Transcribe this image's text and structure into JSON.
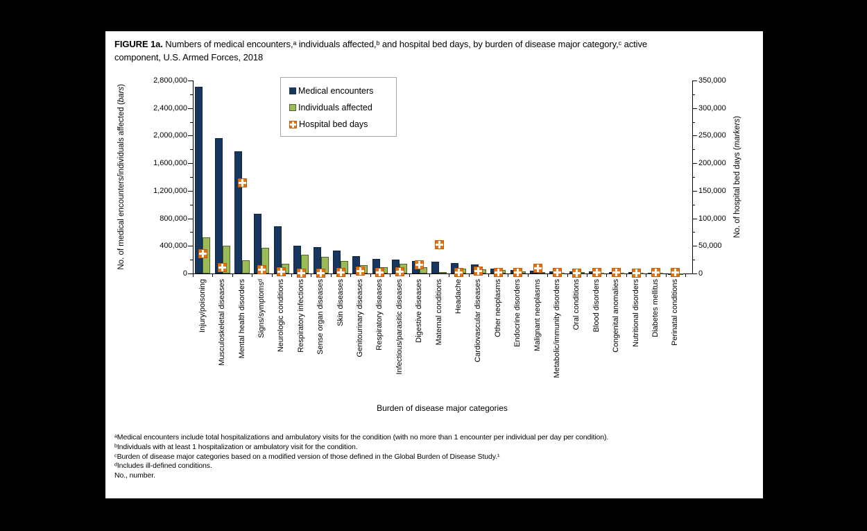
{
  "figure": {
    "title_bold": "FIGURE 1a.",
    "title_line1": " Numbers of medical encounters,ᵃ individuals affected,ᵇ and hospital bed days, by burden of disease major category,ᶜ active",
    "title_line2": "component, U.S. Armed Forces, 2018"
  },
  "chart_data": {
    "type": "bar",
    "title": "FIGURE 1a. Numbers of medical encounters, individuals affected, and hospital bed days, by burden of disease major category, active component, U.S. Armed Forces, 2018",
    "xlabel": "Burden of disease major categories",
    "legend_position": "top-left-inside",
    "grid": "off",
    "categories": [
      "Injury/poisoning",
      "Musculoskeletal diseases",
      "Mental health disorders",
      "Signs/symptomsᵈ",
      "Neurologic conditions",
      "Respiratory infections",
      "Sense organ diseases",
      "Skin diseases",
      "Genitourinary diseases",
      "Respiratory diseases",
      "Infectious/parasitic diseases",
      "Digestive diseases",
      "Maternal conditions",
      "Headache",
      "Cardiovascular diseases",
      "Other neoplasms",
      "Endocrine disorders",
      "Malignant neoplasms",
      "Metabolic/immunity disorders",
      "Oral conditions",
      "Blood disorders",
      "Congenital anomalies",
      "Nutritional disorders",
      "Diabetes mellitus",
      "Perinatal conditions"
    ],
    "series": [
      {
        "name": "Medical encounters",
        "axis": "left",
        "style": "bar",
        "values": [
          2710000,
          1960000,
          1770000,
          865000,
          680000,
          400000,
          385000,
          337000,
          256000,
          215000,
          205000,
          182000,
          172000,
          148000,
          130000,
          68000,
          52000,
          42000,
          30000,
          28000,
          26000,
          22000,
          18000,
          15000,
          5000
        ]
      },
      {
        "name": "Individuals affected",
        "axis": "left",
        "style": "bar",
        "values": [
          520000,
          400000,
          195000,
          375000,
          140000,
          275000,
          243000,
          185000,
          124000,
          90000,
          138000,
          90000,
          23000,
          72000,
          58000,
          50000,
          28000,
          18000,
          15000,
          16000,
          14000,
          11000,
          10000,
          6000,
          3000
        ]
      },
      {
        "name": "Hospital bed days",
        "axis": "right",
        "style": "marker",
        "values": [
          36000,
          11000,
          164000,
          7000,
          3000,
          1200,
          700,
          2500,
          3800,
          2200,
          3000,
          15500,
          52000,
          1300,
          5000,
          2500,
          2000,
          9500,
          1500,
          1200,
          1500,
          1800,
          1000,
          1500,
          1500
        ]
      }
    ],
    "left_axis": {
      "label_prefix": "No. of medical encounters/individuals affected (",
      "label_italic": "bars",
      "label_suffix": ")",
      "max": 2800000,
      "ticks": [
        "0",
        "400,000",
        "800,000",
        "1,200,000",
        "1,600,000",
        "2,000,000",
        "2,400,000",
        "2,800,000"
      ]
    },
    "right_axis": {
      "label_prefix": "No. of hospital bed days (",
      "label_italic": "markers",
      "label_suffix": ")",
      "max": 350000,
      "ticks": [
        "0",
        "50,000",
        "100,000",
        "150,000",
        "200,000",
        "250,000",
        "300,000",
        "350,000"
      ]
    },
    "colors": {
      "medical_encounters": "#17375E",
      "individuals_affected": "#9BBB59",
      "individuals_affected_border": "#4F6228",
      "hospital_bed_days": "#E8730E"
    }
  },
  "footnotes": [
    "ᵃMedical encounters include total hospitalizations and ambulatory visits for the condition (with no more than 1 encounter per individual per day per condition).",
    "ᵇIndividuals with at least 1 hospitalization or ambulatory visit for the condition.",
    "ᶜBurden of disease major categories based on a modified version of those defined in the Global Burden of Disease Study.¹",
    "ᵈIncludes ill-defined conditions.",
    "No., number."
  ]
}
